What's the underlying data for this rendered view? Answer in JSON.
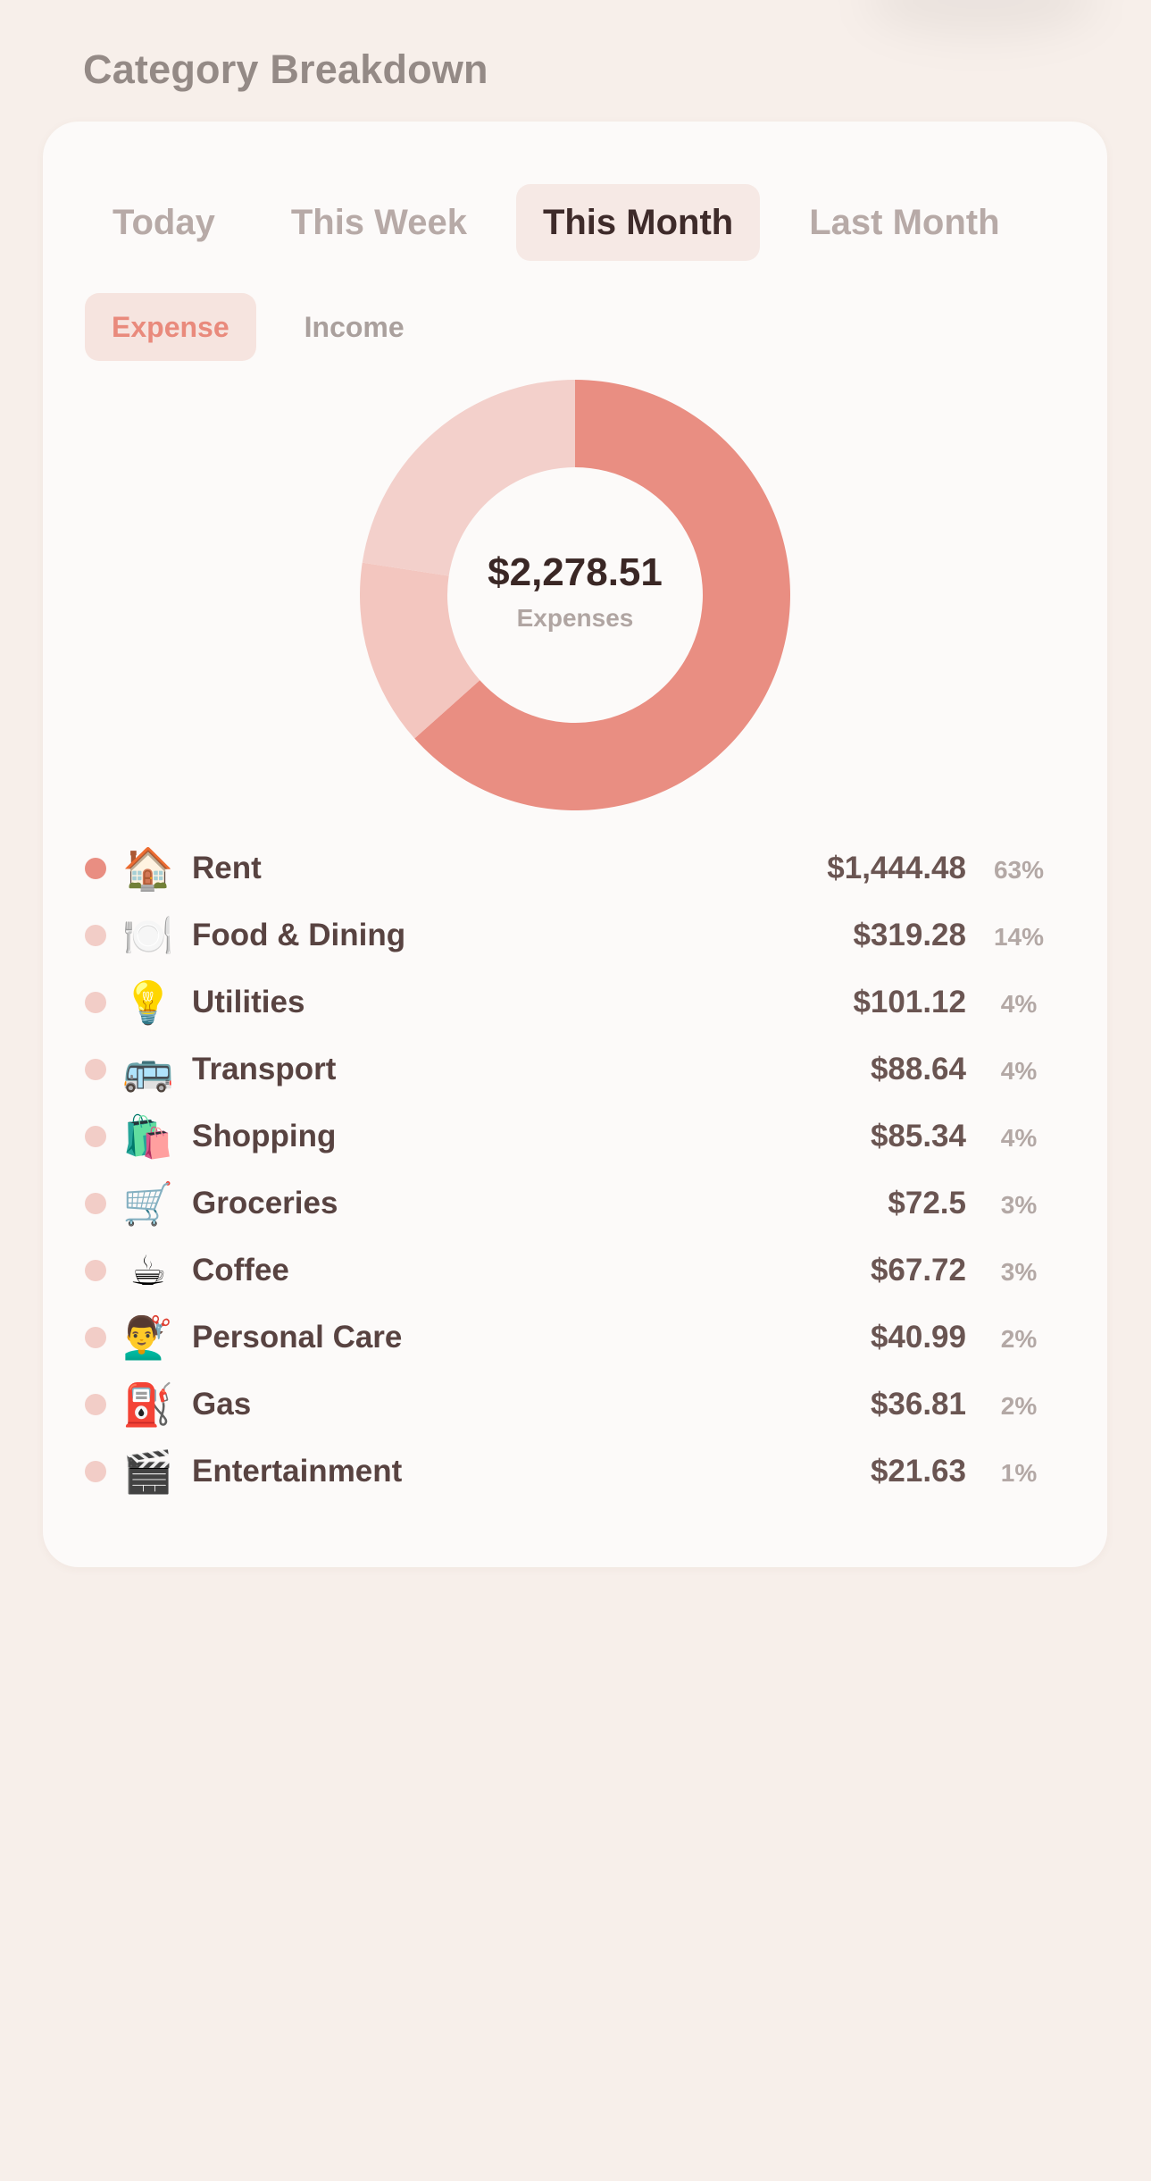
{
  "header": {
    "title": "Category Breakdown"
  },
  "period_tabs": [
    {
      "label": "Today",
      "active": false
    },
    {
      "label": "This Week",
      "active": false
    },
    {
      "label": "This Month",
      "active": true
    },
    {
      "label": "Last Month",
      "active": false
    }
  ],
  "type_tabs": [
    {
      "label": "Expense",
      "active": true
    },
    {
      "label": "Income",
      "active": false
    }
  ],
  "donut": {
    "total": "$2,278.51",
    "caption": "Expenses"
  },
  "colors": {
    "primary": "#e98e82",
    "muted": "#f2c9c3",
    "light": "#f2cdc7"
  },
  "chart_data": {
    "type": "pie",
    "categories": [
      "Rent",
      "Food & Dining",
      "Utilities",
      "Transport",
      "Shopping",
      "Groceries",
      "Coffee",
      "Personal Care",
      "Gas",
      "Entertainment"
    ],
    "values": [
      1444.48,
      319.28,
      101.12,
      88.64,
      85.34,
      72.5,
      67.72,
      40.99,
      36.81,
      21.63
    ],
    "percentages": [
      63,
      14,
      4,
      4,
      4,
      3,
      3,
      2,
      2,
      1
    ]
  },
  "categories": [
    {
      "icon": "house-icon",
      "emoji": "🏠",
      "name": "Rent",
      "amount": "$1,444.48",
      "percent": "63%",
      "dot": "#e98e82"
    },
    {
      "icon": "fork-knife-plate-icon",
      "emoji": "🍽️",
      "name": "Food & Dining",
      "amount": "$319.28",
      "percent": "14%",
      "dot": "#f2cdc7"
    },
    {
      "icon": "light-bulb-icon",
      "emoji": "💡",
      "name": "Utilities",
      "amount": "$101.12",
      "percent": "4%",
      "dot": "#f2cdc7"
    },
    {
      "icon": "bus-icon",
      "emoji": "🚌",
      "name": "Transport",
      "amount": "$88.64",
      "percent": "4%",
      "dot": "#f2cdc7"
    },
    {
      "icon": "shopping-bags-icon",
      "emoji": "🛍️",
      "name": "Shopping",
      "amount": "$85.34",
      "percent": "4%",
      "dot": "#f2cdc7"
    },
    {
      "icon": "shopping-cart-icon",
      "emoji": "🛒",
      "name": "Groceries",
      "amount": "$72.5",
      "percent": "3%",
      "dot": "#f2cdc7"
    },
    {
      "icon": "coffee-cup-icon",
      "emoji": "☕",
      "name": "Coffee",
      "amount": "$67.72",
      "percent": "3%",
      "dot": "#f2cdc7"
    },
    {
      "icon": "haircut-icon",
      "emoji": "💇‍♂️",
      "name": "Personal Care",
      "amount": "$40.99",
      "percent": "2%",
      "dot": "#f2cdc7"
    },
    {
      "icon": "fuel-pump-icon",
      "emoji": "⛽",
      "name": "Gas",
      "amount": "$36.81",
      "percent": "2%",
      "dot": "#f2cdc7"
    },
    {
      "icon": "clapper-board-icon",
      "emoji": "🎬",
      "name": "Entertainment",
      "amount": "$21.63",
      "percent": "1%",
      "dot": "#f2cdc7"
    }
  ]
}
